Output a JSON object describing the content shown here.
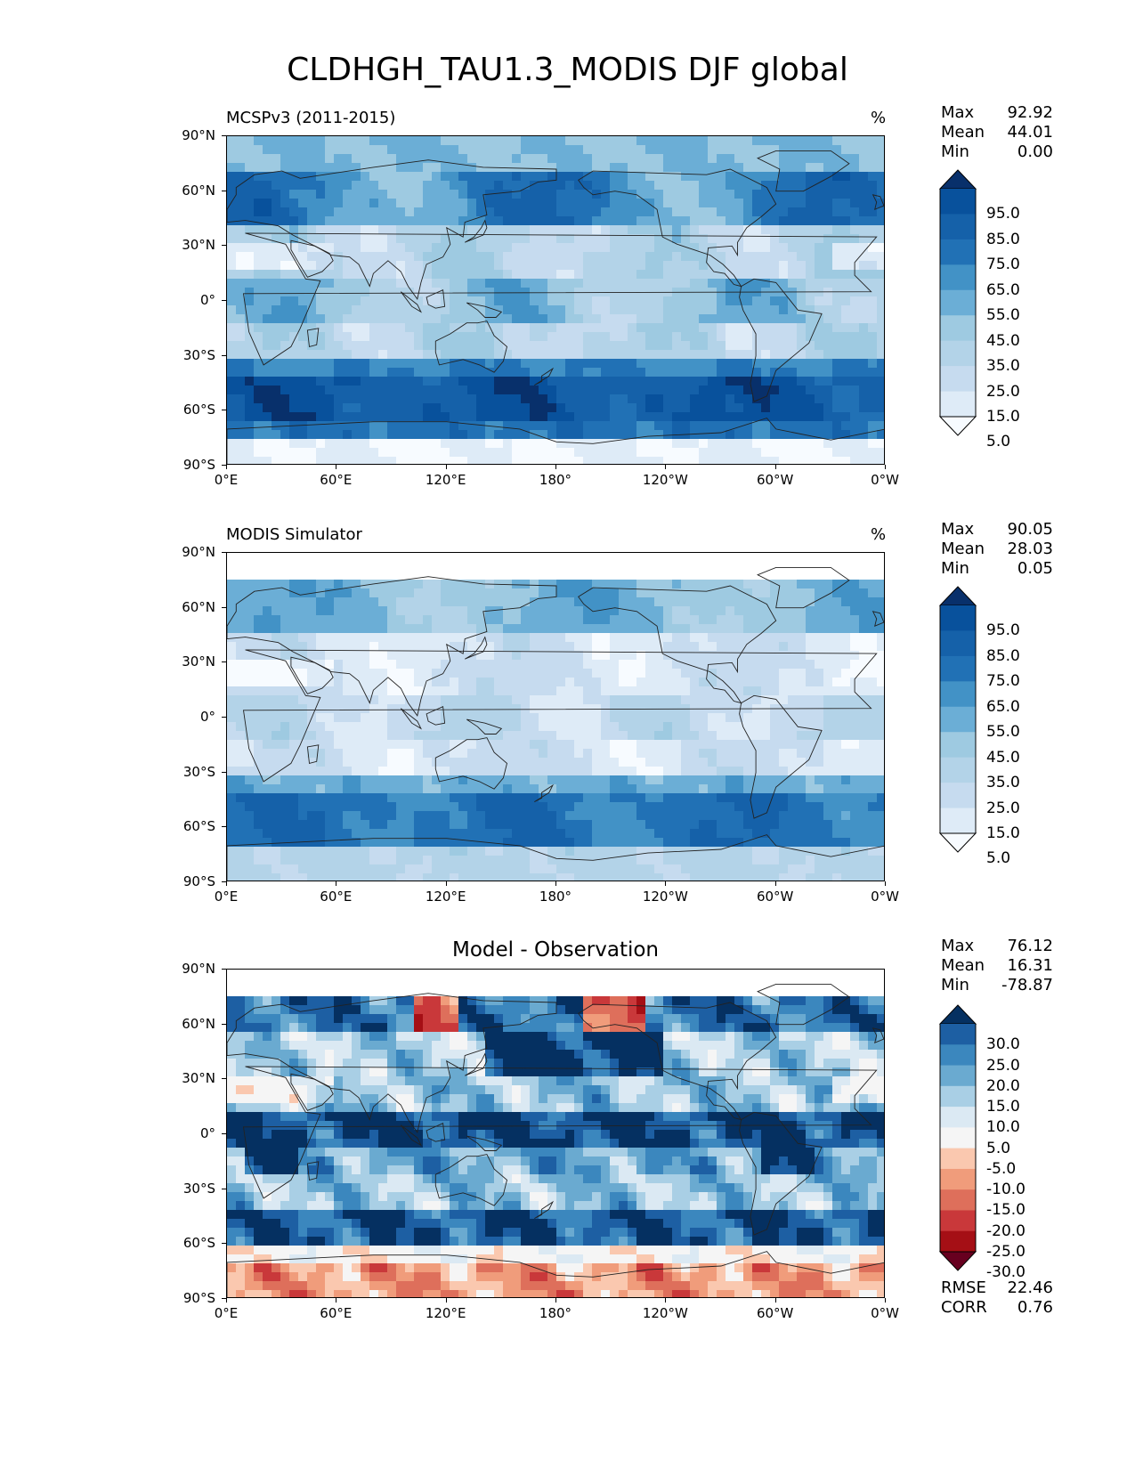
{
  "figure_title": "CLDHGH_TAU1.3_MODIS DJF global",
  "lat_labels": [
    "90°N",
    "60°N",
    "30°N",
    "0°",
    "30°S",
    "60°S",
    "90°S"
  ],
  "lon_labels": [
    "0°E",
    "60°E",
    "120°E",
    "180°",
    "120°W",
    "60°W",
    "0°W"
  ],
  "panels": [
    {
      "title": "MCSPv3 (2011-2015)",
      "title_position": "left",
      "units": "%",
      "stats": [
        {
          "label": "Max",
          "value": "92.92"
        },
        {
          "label": "Mean",
          "value": "44.01"
        },
        {
          "label": "Min",
          "value": "0.00"
        }
      ],
      "colorbar_labels": [
        "95.0",
        "85.0",
        "75.0",
        "65.0",
        "55.0",
        "45.0",
        "35.0",
        "25.0",
        "15.0",
        "5.0"
      ],
      "colormap": [
        "#f7fbff",
        "#deebf7",
        "#c6dbef",
        "#b3d3e8",
        "#9ecae1",
        "#6baed6",
        "#4292c6",
        "#2171b5",
        "#1561a9",
        "#08519c",
        "#08306b"
      ]
    },
    {
      "title": "MODIS Simulator",
      "title_position": "left",
      "units": "%",
      "stats": [
        {
          "label": "Max",
          "value": "90.05"
        },
        {
          "label": "Mean",
          "value": "28.03"
        },
        {
          "label": "Min",
          "value": "0.05"
        }
      ],
      "colorbar_labels": [
        "95.0",
        "85.0",
        "75.0",
        "65.0",
        "55.0",
        "45.0",
        "35.0",
        "25.0",
        "15.0",
        "5.0"
      ],
      "colormap": [
        "#f7fbff",
        "#deebf7",
        "#c6dbef",
        "#b3d3e8",
        "#9ecae1",
        "#6baed6",
        "#4292c6",
        "#2171b5",
        "#1561a9",
        "#08519c",
        "#08306b"
      ]
    },
    {
      "title": "Model - Observation",
      "title_position": "center",
      "units": "",
      "stats": [
        {
          "label": "Max",
          "value": "76.12"
        },
        {
          "label": "Mean",
          "value": "16.31"
        },
        {
          "label": "Min",
          "value": "-78.87"
        }
      ],
      "colorbar_labels": [
        "30.0",
        "25.0",
        "20.0",
        "15.0",
        "10.0",
        "5.0",
        "-5.0",
        "-10.0",
        "-15.0",
        "-20.0",
        "-25.0",
        "-30.0"
      ],
      "colormap": [
        "#67001f",
        "#a50f15",
        "#c9383a",
        "#de6f5b",
        "#f09c7b",
        "#fac8af",
        "#f5f5f5",
        "#dbe9f3",
        "#a9cfe5",
        "#6aaad0",
        "#3b87be",
        "#1d5fa3",
        "#053061"
      ],
      "bottom_stats": [
        {
          "label": "RMSE",
          "value": "22.46"
        },
        {
          "label": "CORR",
          "value": "0.76"
        }
      ]
    }
  ]
}
